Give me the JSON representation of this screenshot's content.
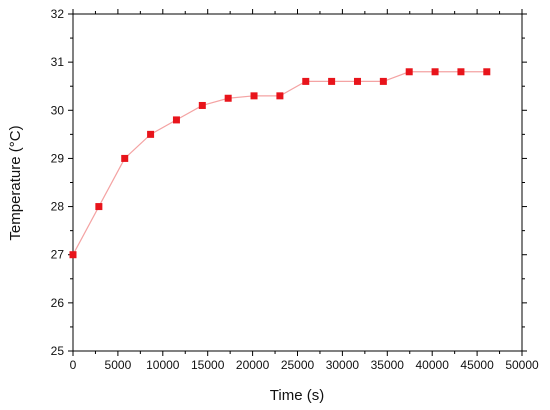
{
  "chart_data": {
    "type": "line",
    "title": "",
    "xlabel": "Time (s)",
    "ylabel": "Temperature (°C)",
    "xlim": [
      0,
      50000
    ],
    "ylim": [
      25,
      32
    ],
    "xticks": [
      0,
      5000,
      10000,
      15000,
      20000,
      25000,
      30000,
      35000,
      40000,
      45000,
      50000
    ],
    "yticks": [
      25,
      26,
      27,
      28,
      29,
      30,
      31,
      32
    ],
    "grid": false,
    "legend": "none",
    "series": [
      {
        "color": "#e8141b",
        "line_color": "#f4a3a3",
        "marker": "square",
        "x": [
          0,
          2880,
          5760,
          8640,
          11520,
          14400,
          17280,
          20160,
          23040,
          25920,
          28800,
          31680,
          34560,
          37440,
          40320,
          43200,
          46080
        ],
        "y": [
          27.0,
          28.0,
          29.0,
          29.5,
          29.8,
          30.1,
          30.25,
          30.3,
          30.3,
          30.6,
          30.6,
          30.6,
          30.6,
          30.8,
          30.8,
          30.8,
          30.8
        ]
      }
    ]
  }
}
